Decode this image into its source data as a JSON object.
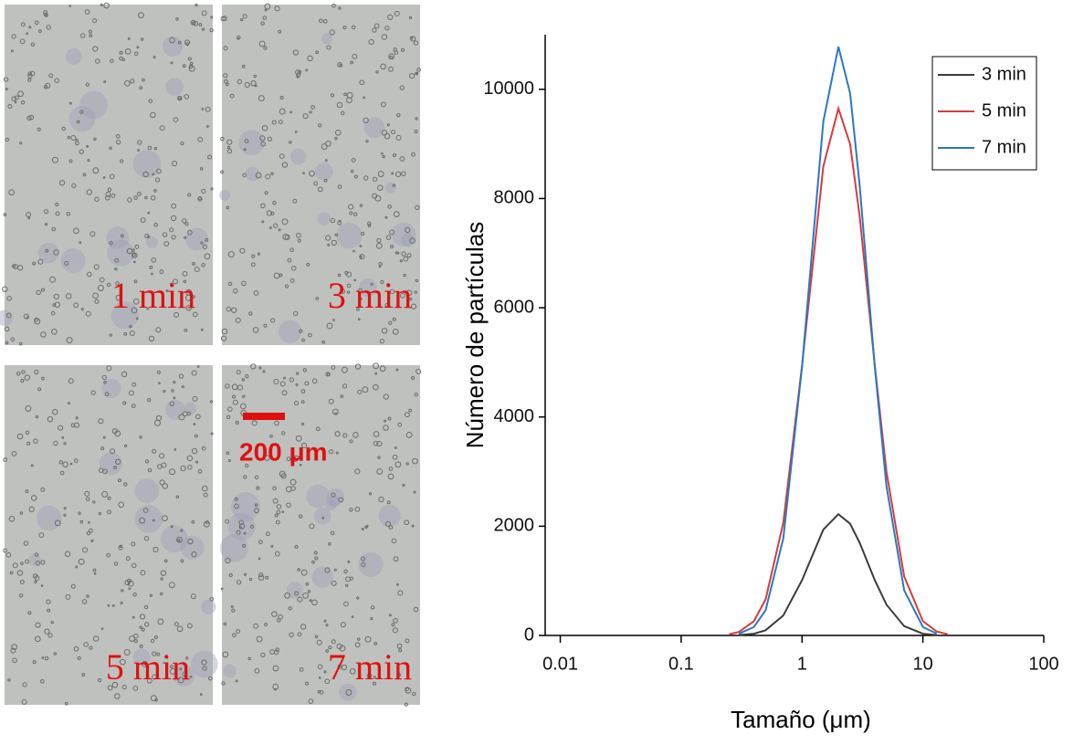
{
  "micrographs": {
    "panels": [
      {
        "label": "1 min"
      },
      {
        "label": "3 min"
      },
      {
        "label": "5 min"
      },
      {
        "label": "7 min"
      }
    ],
    "scale_bar": "200 μm"
  },
  "chart_data": {
    "type": "line",
    "xlabel": "Tamaño (μm)",
    "ylabel": "Número de partículas",
    "x": [
      0.25,
      0.3,
      0.4,
      0.5,
      0.7,
      1,
      1.5,
      2,
      2.5,
      3,
      4,
      5,
      7,
      10,
      13,
      16
    ],
    "series": [
      {
        "name": "3 min",
        "color": "#3c3c3c",
        "values": [
          null,
          6,
          32,
          95,
          366,
          1012,
          1938,
          2220,
          2045,
          1696,
          1012,
          562,
          170,
          32,
          7,
          null
        ]
      },
      {
        "name": "5 min",
        "color": "#d63c3c",
        "values": [
          23,
          64,
          261,
          662,
          2065,
          4941,
          8589,
          9650,
          8994,
          7672,
          4941,
          2992,
          1081,
          261,
          72,
          23
        ]
      },
      {
        "name": "7 min",
        "color": "#2a78c2",
        "values": [
          null,
          30,
          155,
          463,
          1779,
          4916,
          9411,
          10780,
          9928,
          8236,
          4916,
          2727,
          826,
          155,
          34,
          null
        ]
      }
    ],
    "xscale": "log",
    "xlim": [
      0.0075,
      100
    ],
    "xticks": [
      0.01,
      0.1,
      1,
      10,
      100
    ],
    "ylim": [
      0,
      11000
    ],
    "yticks": [
      0,
      2000,
      4000,
      6000,
      8000,
      10000
    ],
    "legend": "upper right"
  }
}
